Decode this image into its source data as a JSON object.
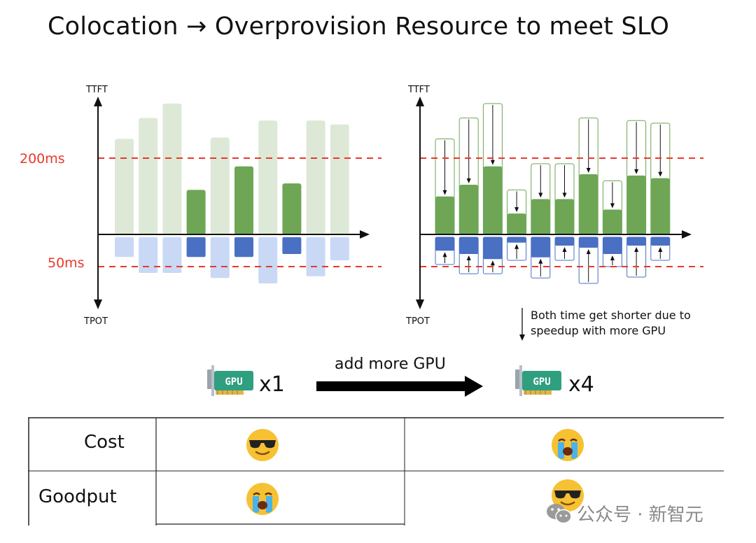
{
  "title": "Colocation → Overprovision Resource to meet SLO",
  "axis": {
    "top_label": "TTFT",
    "bottom_label": "TPOT"
  },
  "thresholds": {
    "ttft_label": "200ms",
    "tpot_label": "50ms"
  },
  "colors": {
    "green_light": "#dde9d6",
    "green_dark": "#6ea655",
    "blue_light": "#c9d8f5",
    "blue_dark": "#4a70c4",
    "threshold": "#e8392b"
  },
  "left_chart": {
    "ttft": [
      0.73,
      0.89,
      1.0,
      0.34,
      0.74,
      0.52,
      0.87,
      0.39,
      0.87,
      0.84
    ],
    "highlight": [
      false,
      false,
      false,
      true,
      false,
      true,
      false,
      true,
      false,
      false
    ],
    "tpot": [
      0.47,
      0.85,
      0.85,
      0.47,
      0.97,
      0.47,
      1.1,
      0.4,
      0.93,
      0.55
    ]
  },
  "right_chart": {
    "ttft_before": [
      0.73,
      0.89,
      1.0,
      0.34,
      0.54,
      0.54,
      0.89,
      0.41,
      0.87,
      0.85
    ],
    "ttft_after": [
      0.29,
      0.38,
      0.52,
      0.16,
      0.27,
      0.27,
      0.46,
      0.19,
      0.45,
      0.43
    ],
    "tpot_before": [
      0.65,
      0.87,
      0.87,
      0.55,
      0.97,
      0.55,
      1.1,
      0.7,
      0.95,
      0.55
    ],
    "tpot_after": [
      0.32,
      0.4,
      0.52,
      0.13,
      0.48,
      0.2,
      0.25,
      0.4,
      0.2,
      0.2
    ]
  },
  "note": {
    "line1": "Both time get shorter due to",
    "line2": "speedup with more GPU"
  },
  "gpu": {
    "icon_text": "GPU",
    "left_count": "x1",
    "right_count": "x4",
    "arrow_label": "add more GPU"
  },
  "table": {
    "rows": [
      {
        "label": "Cost",
        "left": "cool",
        "right": "crying"
      },
      {
        "label": "Goodput",
        "left": "crying",
        "right": "cool"
      }
    ]
  },
  "watermark": "公众号 · 新智元"
}
